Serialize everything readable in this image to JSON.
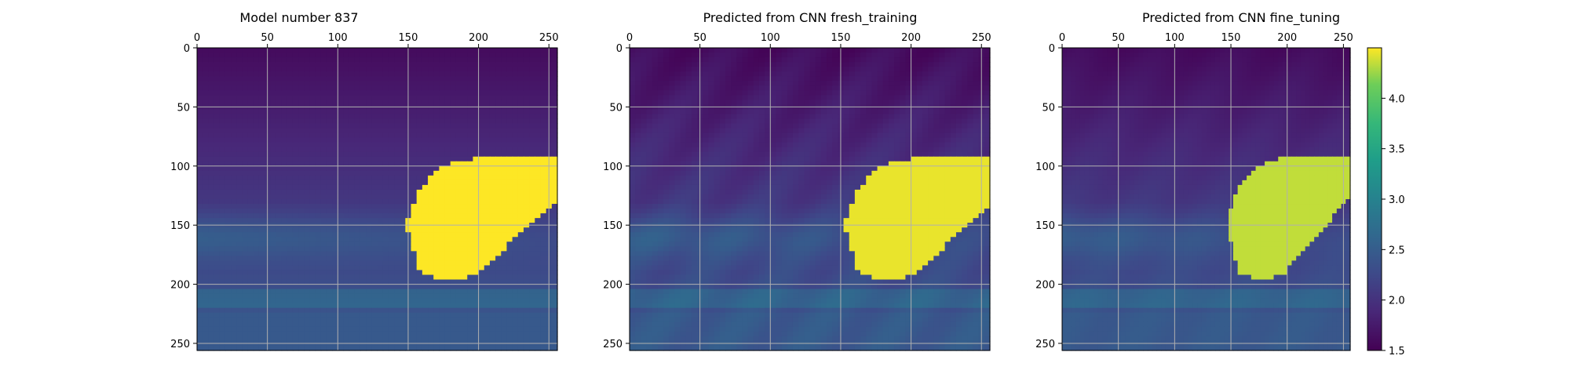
{
  "chart_data": [
    {
      "type": "heatmap",
      "title": "Model number 837",
      "x_ticks": [
        0,
        50,
        100,
        150,
        200,
        250
      ],
      "y_ticks": [
        0,
        50,
        100,
        150,
        200,
        250
      ],
      "xlim": [
        0,
        256
      ],
      "ylim": [
        256,
        0
      ],
      "x_axis_position": "top",
      "grid": true,
      "variant": "true"
    },
    {
      "type": "heatmap",
      "title": "Predicted from CNN fresh_training",
      "x_ticks": [
        0,
        50,
        100,
        150,
        200,
        250
      ],
      "y_ticks": [
        0,
        50,
        100,
        150,
        200,
        250
      ],
      "xlim": [
        0,
        256
      ],
      "ylim": [
        256,
        0
      ],
      "x_axis_position": "top",
      "grid": true,
      "variant": "fresh"
    },
    {
      "type": "heatmap",
      "title": "Predicted from CNN fine_tuning",
      "x_ticks": [
        0,
        50,
        100,
        150,
        200,
        250
      ],
      "y_ticks": [
        0,
        50,
        100,
        150,
        200,
        250
      ],
      "xlim": [
        0,
        256
      ],
      "ylim": [
        256,
        0
      ],
      "x_axis_position": "top",
      "grid": true,
      "variant": "fine"
    }
  ],
  "colorbar": {
    "colormap": "viridis",
    "range": [
      1.5,
      4.5
    ],
    "ticks": [
      {
        "value": 1.5,
        "label": "1.5"
      },
      {
        "value": 2.0,
        "label": "2.0"
      },
      {
        "value": 2.5,
        "label": "2.5"
      },
      {
        "value": 3.0,
        "label": "3.0"
      },
      {
        "value": 3.5,
        "label": "3.5"
      },
      {
        "value": 4.0,
        "label": "4.0"
      }
    ]
  },
  "colors": {
    "viridis_low": "#440154",
    "viridis_mid": "#21918c",
    "viridis_high": "#fde725",
    "grid": "#b0b0b0"
  }
}
